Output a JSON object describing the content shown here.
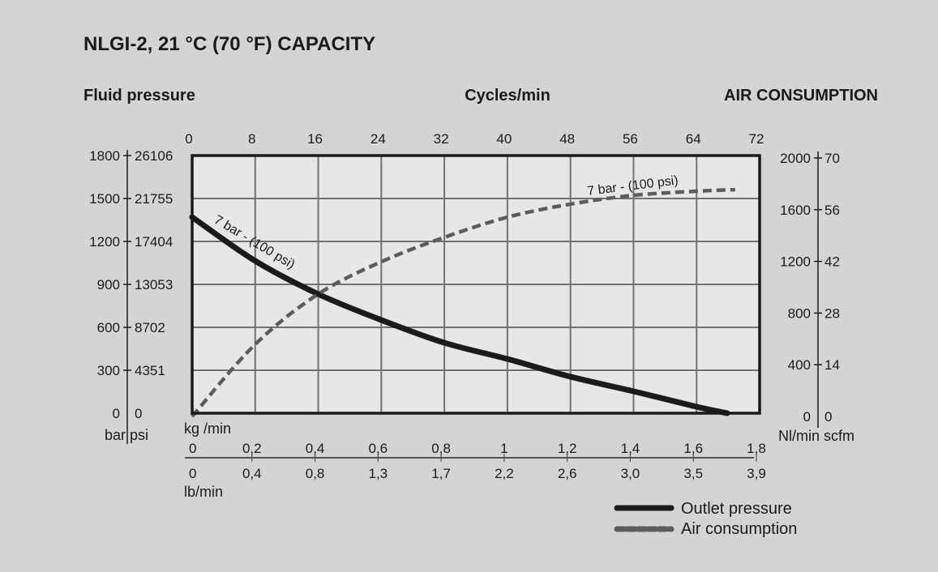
{
  "chart_data": {
    "type": "line",
    "title": "NLGI-2, 21 °C (70 °F) CAPACITY",
    "left_axis_title": "Fluid pressure",
    "top_axis_title": "Cycles/min",
    "right_axis_title": "AIR CONSUMPTION",
    "x_top": {
      "label": "Cycles/min",
      "ticks": [
        "0",
        "8",
        "16",
        "24",
        "32",
        "40",
        "48",
        "56",
        "64",
        "72"
      ],
      "range": [
        0,
        72
      ]
    },
    "y_left": {
      "units": "bar psi",
      "range": [
        0,
        1800
      ],
      "ticks_bar": [
        "0",
        "300",
        "600",
        "900",
        "1200",
        "1500",
        "1800"
      ],
      "ticks_psi": [
        "0",
        "4351",
        "8702",
        "13053",
        "17404",
        "21755",
        "26106"
      ]
    },
    "y_right": {
      "units": "Nl/min scfm",
      "range": [
        0,
        2000
      ],
      "ticks_nl": [
        "0",
        "400",
        "800",
        "1200",
        "1600",
        "2000"
      ],
      "ticks_scfm": [
        "0",
        "14",
        "28",
        "42",
        "56",
        "70"
      ]
    },
    "x_bottom": {
      "label_top": "kg /min",
      "label_bottom": "lb/min",
      "ticks_kg": [
        "0",
        "0,2",
        "0,4",
        "0,6",
        "0,8",
        "1",
        "1,2",
        "1,4",
        "1,6",
        "1,8"
      ],
      "ticks_lb": [
        "0",
        "0,4",
        "0,8",
        "1,3",
        "1,7",
        "2,2",
        "2,6",
        "3,0",
        "3,5",
        "3,9"
      ]
    },
    "grid": true,
    "legend_position": "bottom-right",
    "series": [
      {
        "name": "Outlet pressure",
        "axis": "left",
        "style": "solid",
        "color": "#1e1a1a",
        "annotation": "7 bar - (100 psi)",
        "x": [
          0,
          8,
          16,
          24,
          32,
          40,
          48,
          56,
          64,
          67.9
        ],
        "y": [
          1370,
          1064,
          832,
          651,
          492,
          379,
          255,
          153,
          45,
          0
        ]
      },
      {
        "name": "Air consumption",
        "axis": "right",
        "style": "dashed",
        "color": "#5c5c5e",
        "annotation": "7 bar - (100 psi)",
        "x": [
          0,
          8,
          16,
          24,
          32,
          40,
          48,
          56,
          64,
          68.9
        ],
        "y": [
          0,
          558,
          947,
          1197,
          1386,
          1542,
          1643,
          1711,
          1743,
          1755
        ]
      }
    ]
  }
}
